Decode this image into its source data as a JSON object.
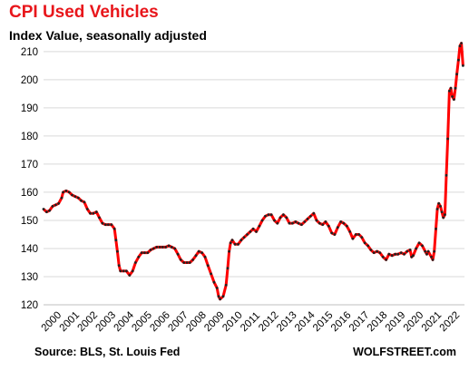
{
  "title": "CPI Used Vehicles",
  "subtitle": "Index Value, seasonally adjusted",
  "source": "Source: BLS, St. Louis Fed",
  "brand": "WOLFSTREET.com",
  "colors": {
    "title": "#e8161b",
    "line": "#ff0000",
    "markers": "#222222"
  },
  "chart_data": {
    "type": "line",
    "title": "CPI Used Vehicles",
    "ylabel": "",
    "xlabel": "",
    "ylim": [
      120,
      215
    ],
    "yticks": [
      120,
      130,
      140,
      150,
      160,
      170,
      180,
      190,
      200,
      210
    ],
    "xlim": [
      2000,
      2022.25
    ],
    "xticks": [
      "2000",
      "2001",
      "2002",
      "2003",
      "2004",
      "2005",
      "2006",
      "2007",
      "2008",
      "2009",
      "2010",
      "2011",
      "2012",
      "2013",
      "2014",
      "2015",
      "2016",
      "2017",
      "2018",
      "2019",
      "2020",
      "2021",
      "2022"
    ],
    "grid": "horizontal",
    "series": [
      {
        "points": [
          [
            2000.0,
            154
          ],
          [
            2000.17,
            153
          ],
          [
            2000.33,
            153.5
          ],
          [
            2000.5,
            155
          ],
          [
            2000.67,
            155.5
          ],
          [
            2000.83,
            156
          ],
          [
            2001.0,
            158
          ],
          [
            2001.08,
            160
          ],
          [
            2001.25,
            160.5
          ],
          [
            2001.42,
            160
          ],
          [
            2001.58,
            159
          ],
          [
            2001.75,
            158.5
          ],
          [
            2001.92,
            158
          ],
          [
            2002.08,
            157
          ],
          [
            2002.25,
            156.5
          ],
          [
            2002.42,
            154
          ],
          [
            2002.58,
            152.5
          ],
          [
            2002.75,
            152.5
          ],
          [
            2002.92,
            153
          ],
          [
            2003.08,
            151
          ],
          [
            2003.25,
            149
          ],
          [
            2003.42,
            148.5
          ],
          [
            2003.58,
            148.5
          ],
          [
            2003.75,
            148.5
          ],
          [
            2003.92,
            147
          ],
          [
            2004.0,
            143
          ],
          [
            2004.08,
            139
          ],
          [
            2004.17,
            134
          ],
          [
            2004.25,
            132
          ],
          [
            2004.42,
            132
          ],
          [
            2004.58,
            132
          ],
          [
            2004.75,
            130.5
          ],
          [
            2004.92,
            132
          ],
          [
            2005.08,
            135
          ],
          [
            2005.25,
            137
          ],
          [
            2005.42,
            138.5
          ],
          [
            2005.58,
            138.5
          ],
          [
            2005.75,
            138.5
          ],
          [
            2005.92,
            139.5
          ],
          [
            2006.08,
            140
          ],
          [
            2006.25,
            140.5
          ],
          [
            2006.42,
            140.5
          ],
          [
            2006.58,
            140.5
          ],
          [
            2006.75,
            140.5
          ],
          [
            2006.92,
            141
          ],
          [
            2007.08,
            140.5
          ],
          [
            2007.25,
            140
          ],
          [
            2007.42,
            138
          ],
          [
            2007.58,
            136
          ],
          [
            2007.75,
            135
          ],
          [
            2007.92,
            135
          ],
          [
            2008.08,
            135
          ],
          [
            2008.25,
            136
          ],
          [
            2008.42,
            137.5
          ],
          [
            2008.58,
            139
          ],
          [
            2008.75,
            138.5
          ],
          [
            2008.92,
            137
          ],
          [
            2009.08,
            134
          ],
          [
            2009.25,
            131
          ],
          [
            2009.42,
            128
          ],
          [
            2009.58,
            126
          ],
          [
            2009.67,
            123
          ],
          [
            2009.75,
            122
          ],
          [
            2009.92,
            123
          ],
          [
            2010.08,
            127
          ],
          [
            2010.17,
            133
          ],
          [
            2010.25,
            139
          ],
          [
            2010.33,
            142
          ],
          [
            2010.42,
            143
          ],
          [
            2010.58,
            141.5
          ],
          [
            2010.75,
            141.5
          ],
          [
            2010.92,
            143
          ],
          [
            2011.08,
            144
          ],
          [
            2011.25,
            145
          ],
          [
            2011.42,
            146
          ],
          [
            2011.58,
            147
          ],
          [
            2011.75,
            146
          ],
          [
            2011.92,
            148
          ],
          [
            2012.08,
            150
          ],
          [
            2012.25,
            151.5
          ],
          [
            2012.42,
            152
          ],
          [
            2012.58,
            152
          ],
          [
            2012.75,
            150
          ],
          [
            2012.92,
            149
          ],
          [
            2013.08,
            151
          ],
          [
            2013.25,
            152
          ],
          [
            2013.42,
            151
          ],
          [
            2013.58,
            149
          ],
          [
            2013.75,
            149
          ],
          [
            2013.92,
            149.5
          ],
          [
            2014.08,
            149
          ],
          [
            2014.25,
            148.5
          ],
          [
            2014.42,
            149.5
          ],
          [
            2014.58,
            150.5
          ],
          [
            2014.75,
            151.5
          ],
          [
            2014.92,
            152.5
          ],
          [
            2015.08,
            150
          ],
          [
            2015.25,
            149
          ],
          [
            2015.42,
            148.5
          ],
          [
            2015.58,
            149.5
          ],
          [
            2015.75,
            148
          ],
          [
            2015.92,
            145.5
          ],
          [
            2016.08,
            145
          ],
          [
            2016.25,
            147.5
          ],
          [
            2016.42,
            149.5
          ],
          [
            2016.58,
            149
          ],
          [
            2016.75,
            148
          ],
          [
            2016.92,
            146
          ],
          [
            2017.08,
            143.5
          ],
          [
            2017.25,
            145
          ],
          [
            2017.42,
            145
          ],
          [
            2017.58,
            144
          ],
          [
            2017.75,
            142
          ],
          [
            2017.92,
            141
          ],
          [
            2018.08,
            139.5
          ],
          [
            2018.25,
            138.5
          ],
          [
            2018.42,
            139
          ],
          [
            2018.58,
            138.5
          ],
          [
            2018.75,
            137
          ],
          [
            2018.92,
            136
          ],
          [
            2019.08,
            138
          ],
          [
            2019.25,
            137.5
          ],
          [
            2019.42,
            138
          ],
          [
            2019.58,
            138
          ],
          [
            2019.75,
            138.5
          ],
          [
            2019.92,
            138
          ],
          [
            2020.08,
            139
          ],
          [
            2020.25,
            139.5
          ],
          [
            2020.33,
            137
          ],
          [
            2020.42,
            137.5
          ],
          [
            2020.58,
            140
          ],
          [
            2020.75,
            142
          ],
          [
            2020.92,
            141
          ],
          [
            2021.08,
            139
          ],
          [
            2021.17,
            138
          ],
          [
            2021.25,
            139
          ],
          [
            2021.42,
            137
          ],
          [
            2021.5,
            136
          ],
          [
            2021.58,
            139
          ],
          [
            2021.67,
            147
          ],
          [
            2021.75,
            154
          ],
          [
            2021.83,
            156
          ],
          [
            2021.92,
            155
          ],
          [
            2022.0,
            153
          ],
          [
            2022.08,
            151
          ],
          [
            2022.17,
            152
          ],
          [
            2022.25,
            166
          ],
          [
            2022.33,
            179
          ],
          [
            2022.42,
            196
          ],
          [
            2022.5,
            197
          ],
          [
            2022.58,
            194
          ],
          [
            2022.67,
            193
          ],
          [
            2022.75,
            197
          ],
          [
            2022.83,
            202
          ],
          [
            2022.92,
            207
          ],
          [
            2023.0,
            212
          ],
          [
            2023.08,
            213
          ],
          [
            2023.17,
            205
          ]
        ]
      }
    ]
  }
}
